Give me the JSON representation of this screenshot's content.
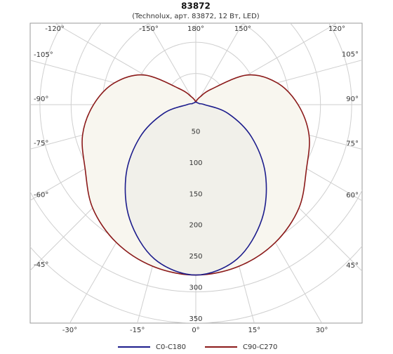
{
  "chart_data": {
    "type": "polar",
    "title": "83872",
    "subtitle": "(Technolux, арт. 83872, 12 Вт, LED)",
    "angles": [
      -180,
      -165,
      -150,
      -135,
      -120,
      -105,
      -90,
      -75,
      -60,
      -45,
      -30,
      -15,
      0,
      15,
      30,
      45,
      60,
      75,
      90,
      105,
      120,
      135,
      150,
      165,
      180
    ],
    "series": [
      {
        "name": "C0-C180",
        "color": "#1c1c8c",
        "values": [
          4,
          4,
          4,
          4,
          5,
          6,
          14,
          53,
          103,
          158,
          212,
          256,
          273,
          256,
          212,
          158,
          103,
          53,
          14,
          6,
          5,
          4,
          4,
          4,
          4
        ]
      },
      {
        "name": "C90-C270",
        "color": "#8b1a1a",
        "values": [
          4,
          8,
          15,
          35,
          95,
          135,
          164,
          188,
          205,
          234,
          255,
          268,
          273,
          268,
          255,
          234,
          205,
          188,
          164,
          135,
          95,
          35,
          15,
          8,
          4
        ]
      }
    ],
    "rlim": [
      0,
      350
    ],
    "rticks": [
      50,
      100,
      150,
      200,
      250,
      300,
      350
    ],
    "angle_ticks": [
      {
        "value": -120,
        "label": "-120°"
      },
      {
        "value": -150,
        "label": "-150°"
      },
      {
        "value": 180,
        "label": "180°"
      },
      {
        "value": 150,
        "label": "150°"
      },
      {
        "value": 120,
        "label": "120°"
      },
      {
        "value": -105,
        "label": "-105°"
      },
      {
        "value": 105,
        "label": "105°"
      },
      {
        "value": -90,
        "label": "-90°"
      },
      {
        "value": 90,
        "label": "90°"
      },
      {
        "value": -75,
        "label": "-75°"
      },
      {
        "value": 75,
        "label": "75°"
      },
      {
        "value": -60,
        "label": "-60°"
      },
      {
        "value": 60,
        "label": "60°"
      },
      {
        "value": -45,
        "label": "-45°"
      },
      {
        "value": 45,
        "label": "45°"
      },
      {
        "value": -30,
        "label": "-30°"
      },
      {
        "value": -15,
        "label": "-15°"
      },
      {
        "value": 0,
        "label": "0°"
      },
      {
        "value": 15,
        "label": "15°"
      },
      {
        "value": 30,
        "label": "30°"
      }
    ],
    "grid": true
  }
}
